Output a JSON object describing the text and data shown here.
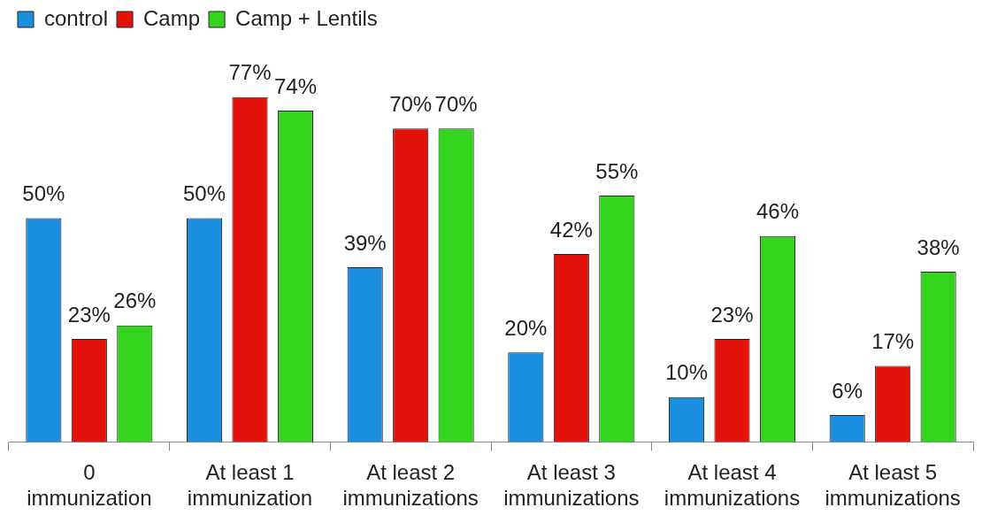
{
  "chart_data": {
    "type": "bar",
    "categories": [
      "0 immunization",
      "At least 1 immunization",
      "At least 2 immunizations",
      "At least 3 immunizations",
      "At least 4 immunizations",
      "At least 5 immunizations"
    ],
    "series": [
      {
        "name": "control",
        "color": "#1c8fe0",
        "values": [
          50,
          50,
          39,
          20,
          10,
          6
        ],
        "value_labels": [
          "50%",
          "50%",
          "39%",
          "20%",
          "10%",
          "6%"
        ]
      },
      {
        "name": "Camp",
        "color": "#e3120b",
        "values": [
          23,
          77,
          70,
          42,
          23,
          17
        ],
        "value_labels": [
          "23%",
          "77%",
          "70%",
          "42%",
          "23%",
          "17%"
        ]
      },
      {
        "name": "Camp + Lentils",
        "color": "#35d41f",
        "values": [
          26,
          74,
          70,
          55,
          46,
          38
        ],
        "value_labels": [
          "26%",
          "74%",
          "70%",
          "55%",
          "46%",
          "38%"
        ]
      }
    ],
    "legend": "top left",
    "grid": false
  }
}
